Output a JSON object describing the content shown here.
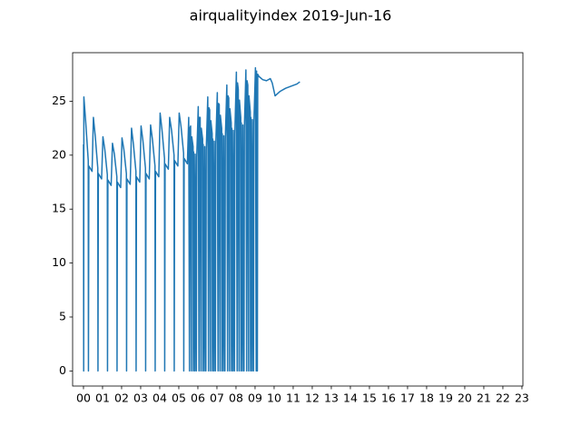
{
  "chart_data": {
    "type": "line",
    "title": "airqualityindex 2019-Jun-16",
    "color": "#1f77b4",
    "x": [
      0,
      0.01,
      0.02,
      0.12,
      0.25,
      0.26,
      0.28,
      0.45,
      0.52,
      0.62,
      0.75,
      0.76,
      0.78,
      0.95,
      1.02,
      1.12,
      1.25,
      1.26,
      1.28,
      1.45,
      1.52,
      1.62,
      1.75,
      1.76,
      1.78,
      1.95,
      2.02,
      2.12,
      2.25,
      2.26,
      2.28,
      2.45,
      2.52,
      2.62,
      2.75,
      2.76,
      2.78,
      2.95,
      3.02,
      3.12,
      3.25,
      3.26,
      3.28,
      3.45,
      3.52,
      3.62,
      3.75,
      3.76,
      3.78,
      3.95,
      4.02,
      4.12,
      4.25,
      4.26,
      4.28,
      4.45,
      4.52,
      4.62,
      4.75,
      4.76,
      4.78,
      4.95,
      5.02,
      5.12,
      5.25,
      5.26,
      5.28,
      5.45,
      5.52,
      5.56,
      5.58,
      5.62,
      5.66,
      5.68,
      5.75,
      5.76,
      5.78,
      5.84,
      5.86,
      5.92,
      5.94,
      6.02,
      6.06,
      6.08,
      6.12,
      6.16,
      6.18,
      6.25,
      6.26,
      6.28,
      6.34,
      6.36,
      6.42,
      6.44,
      6.52,
      6.56,
      6.58,
      6.62,
      6.66,
      6.68,
      6.75,
      6.76,
      6.78,
      6.84,
      6.86,
      6.92,
      6.94,
      7.02,
      7.06,
      7.08,
      7.12,
      7.16,
      7.18,
      7.25,
      7.26,
      7.28,
      7.34,
      7.36,
      7.42,
      7.44,
      7.52,
      7.56,
      7.58,
      7.62,
      7.66,
      7.68,
      7.75,
      7.76,
      7.78,
      7.84,
      7.86,
      7.92,
      7.94,
      8.02,
      8.06,
      8.08,
      8.12,
      8.16,
      8.18,
      8.25,
      8.26,
      8.28,
      8.34,
      8.36,
      8.42,
      8.44,
      8.52,
      8.56,
      8.58,
      8.62,
      8.66,
      8.68,
      8.75,
      8.76,
      8.78,
      8.84,
      8.86,
      8.92,
      8.94,
      9.02,
      9.06,
      9.08,
      9.12,
      9.14,
      9.2,
      9.4,
      9.6,
      9.8,
      9.9,
      10.05,
      10.3,
      10.6,
      10.9,
      11.2,
      11.35
    ],
    "values": [
      21.0,
      0,
      25.4,
      23.0,
      19.5,
      0,
      19.0,
      18.5,
      23.5,
      21.7,
      18.8,
      0,
      18.3,
      17.8,
      21.7,
      20.5,
      18.2,
      0,
      17.7,
      17.2,
      21.1,
      20.1,
      18.0,
      0,
      17.5,
      17.0,
      21.6,
      20.5,
      18.3,
      0,
      17.8,
      17.3,
      22.5,
      21.0,
      18.5,
      0,
      18.0,
      17.5,
      22.7,
      21.3,
      18.8,
      0,
      18.3,
      17.8,
      22.8,
      21.4,
      19.0,
      0,
      18.5,
      18.0,
      23.9,
      22.3,
      19.7,
      0,
      19.2,
      18.7,
      23.5,
      22.3,
      20.0,
      0,
      19.5,
      19.0,
      23.9,
      22.6,
      20.2,
      0,
      19.7,
      19.2,
      23.5,
      0,
      22.5,
      22.7,
      0,
      21.7,
      20.8,
      0,
      20.3,
      0,
      20.1,
      0,
      19.8,
      24.5,
      0,
      23.5,
      23.5,
      0,
      22.5,
      21.5,
      0,
      21.0,
      0,
      20.8,
      0,
      20.5,
      25.4,
      0,
      24.4,
      24.2,
      0,
      23.2,
      22.0,
      0,
      21.5,
      0,
      21.3,
      0,
      21.0,
      25.8,
      0,
      24.8,
      24.7,
      0,
      23.7,
      22.5,
      0,
      22.0,
      0,
      21.8,
      0,
      21.5,
      26.5,
      0,
      25.5,
      25.3,
      0,
      24.3,
      23.0,
      0,
      22.5,
      0,
      22.3,
      0,
      22.0,
      27.7,
      0,
      26.7,
      26.1,
      0,
      25.1,
      23.5,
      0,
      23.0,
      0,
      22.8,
      0,
      22.5,
      27.9,
      0,
      26.9,
      26.5,
      0,
      25.5,
      24.0,
      0,
      23.5,
      0,
      23.3,
      0,
      23.0,
      28.1,
      0,
      27.8,
      0,
      27.5,
      27.3,
      27.0,
      26.9,
      27.1,
      26.7,
      25.5,
      25.9,
      26.2,
      26.4,
      26.6,
      26.8
    ],
    "xlim": [
      -0.57,
      23.05
    ],
    "ylim": [
      -1.4,
      29.5
    ],
    "xticks": [
      {
        "value": 0,
        "label": "00"
      },
      {
        "value": 1,
        "label": "01"
      },
      {
        "value": 2,
        "label": "02"
      },
      {
        "value": 3,
        "label": "03"
      },
      {
        "value": 4,
        "label": "04"
      },
      {
        "value": 5,
        "label": "05"
      },
      {
        "value": 6,
        "label": "06"
      },
      {
        "value": 7,
        "label": "07"
      },
      {
        "value": 8,
        "label": "08"
      },
      {
        "value": 9,
        "label": "09"
      },
      {
        "value": 10,
        "label": "10"
      },
      {
        "value": 11,
        "label": "11"
      },
      {
        "value": 12,
        "label": "12"
      },
      {
        "value": 13,
        "label": "13"
      },
      {
        "value": 14,
        "label": "14"
      },
      {
        "value": 15,
        "label": "15"
      },
      {
        "value": 16,
        "label": "16"
      },
      {
        "value": 17,
        "label": "17"
      },
      {
        "value": 18,
        "label": "18"
      },
      {
        "value": 19,
        "label": "19"
      },
      {
        "value": 20,
        "label": "20"
      },
      {
        "value": 21,
        "label": "21"
      },
      {
        "value": 22,
        "label": "22"
      },
      {
        "value": 23,
        "label": "23"
      }
    ],
    "yticks": [
      0,
      5,
      10,
      15,
      20,
      25
    ]
  }
}
